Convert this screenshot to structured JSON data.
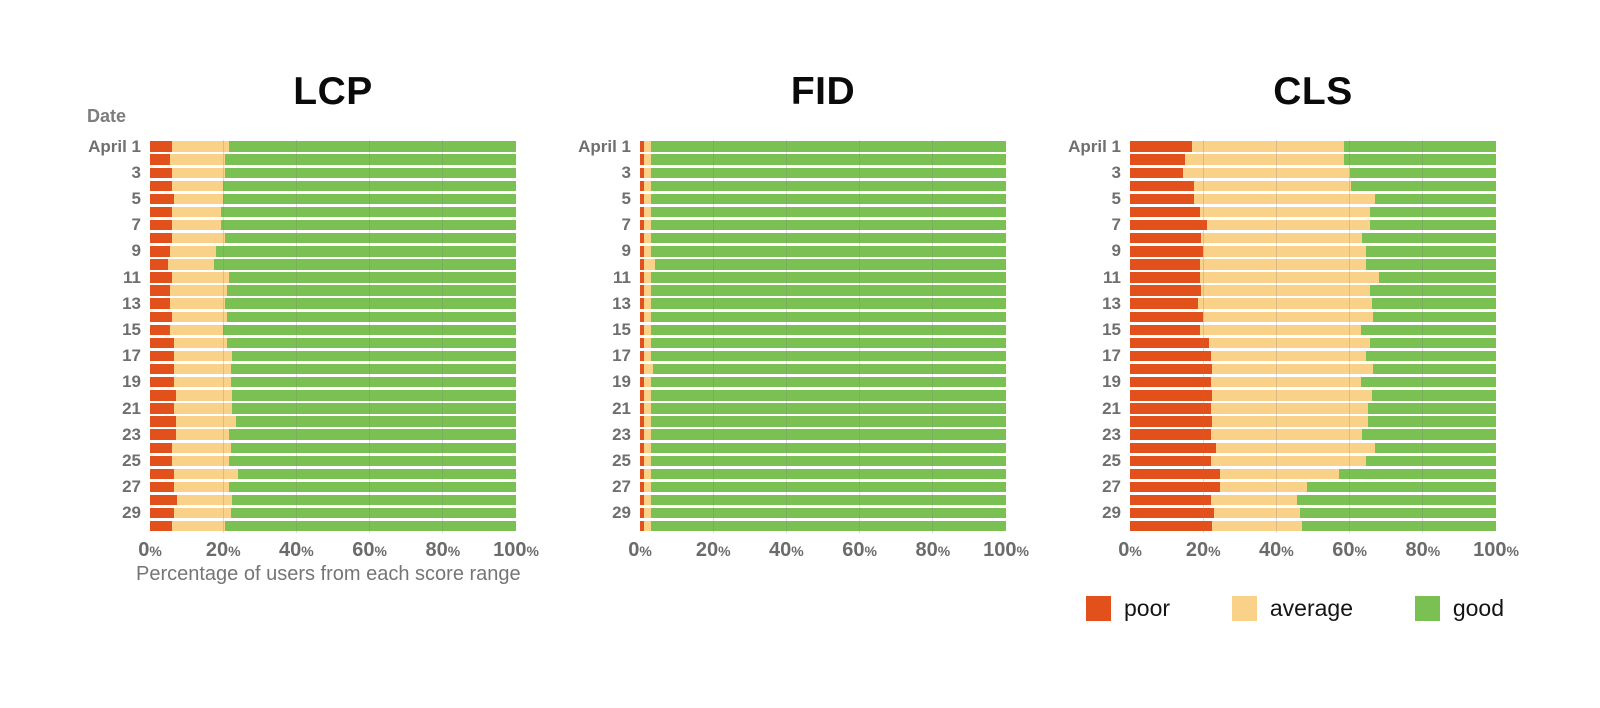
{
  "colors": {
    "poor": "#E2511B",
    "average": "#FAD189",
    "good": "#7AC052",
    "axis_text": "#6b6b6b",
    "muted_text": "#757575",
    "gridline": "rgba(130,130,130,0.28)"
  },
  "y_axis": {
    "title": "Date",
    "ticks": [
      {
        "row": 0,
        "label": "April 1"
      },
      {
        "row": 2,
        "label": "3"
      },
      {
        "row": 4,
        "label": "5"
      },
      {
        "row": 6,
        "label": "7"
      },
      {
        "row": 8,
        "label": "9"
      },
      {
        "row": 10,
        "label": "11"
      },
      {
        "row": 12,
        "label": "13"
      },
      {
        "row": 14,
        "label": "15"
      },
      {
        "row": 16,
        "label": "17"
      },
      {
        "row": 18,
        "label": "19"
      },
      {
        "row": 20,
        "label": "21"
      },
      {
        "row": 22,
        "label": "23"
      },
      {
        "row": 24,
        "label": "25"
      },
      {
        "row": 26,
        "label": "27"
      },
      {
        "row": 28,
        "label": "29"
      }
    ]
  },
  "x_axis": {
    "title": "Percentage of users from each score range",
    "suffix": "%",
    "ticks": [
      {
        "pos": 0,
        "label": "0"
      },
      {
        "pos": 20,
        "label": "20"
      },
      {
        "pos": 40,
        "label": "40"
      },
      {
        "pos": 60,
        "label": "60"
      },
      {
        "pos": 80,
        "label": "80"
      },
      {
        "pos": 100,
        "label": "100"
      }
    ],
    "gridlines": [
      20,
      40,
      60,
      80
    ]
  },
  "legend": {
    "items": [
      {
        "key": "poor",
        "label": "poor"
      },
      {
        "key": "average",
        "label": "average"
      },
      {
        "key": "good",
        "label": "good"
      }
    ]
  },
  "chart_data": [
    {
      "type": "bar",
      "stacked": true,
      "orientation": "horizontal",
      "title": "LCP",
      "xlim": [
        0,
        100
      ],
      "categories": [
        "April 1",
        "April 2",
        "April 3",
        "April 4",
        "April 5",
        "April 6",
        "April 7",
        "April 8",
        "April 9",
        "April 10",
        "April 11",
        "April 12",
        "April 13",
        "April 14",
        "April 15",
        "April 16",
        "April 17",
        "April 18",
        "April 19",
        "April 20",
        "April 21",
        "April 22",
        "April 23",
        "April 24",
        "April 25",
        "April 26",
        "April 27",
        "April 28",
        "April 29",
        "April 30"
      ],
      "series": [
        {
          "name": "poor",
          "values": [
            6,
            5.5,
            6,
            6,
            6.5,
            6,
            6,
            6,
            5.5,
            5,
            6,
            5.5,
            5.5,
            6,
            5.5,
            6.5,
            6.5,
            6.5,
            6.5,
            7,
            6.5,
            7,
            7,
            6,
            6,
            6.5,
            6.5,
            7.5,
            6.5,
            6
          ]
        },
        {
          "name": "average",
          "values": [
            15.5,
            15,
            14.5,
            14,
            13.5,
            13.5,
            13.5,
            14.5,
            12.5,
            12.5,
            15.5,
            15.5,
            15,
            15,
            14.5,
            14.5,
            16,
            15.5,
            15.5,
            15.5,
            16,
            16.5,
            14.5,
            16,
            15.5,
            17.5,
            15,
            15,
            15.5,
            14.5
          ]
        },
        {
          "name": "good",
          "values": [
            78.5,
            79.5,
            79.5,
            80,
            80,
            80.5,
            80.5,
            79.5,
            82,
            82.5,
            78.5,
            79,
            79.5,
            79,
            80,
            79,
            77.5,
            78,
            78,
            77.5,
            77.5,
            76.5,
            78.5,
            78,
            78.5,
            76,
            78.5,
            77.5,
            78,
            79.5
          ]
        }
      ]
    },
    {
      "type": "bar",
      "stacked": true,
      "orientation": "horizontal",
      "title": "FID",
      "xlim": [
        0,
        100
      ],
      "categories": [
        "April 1",
        "April 2",
        "April 3",
        "April 4",
        "April 5",
        "April 6",
        "April 7",
        "April 8",
        "April 9",
        "April 10",
        "April 11",
        "April 12",
        "April 13",
        "April 14",
        "April 15",
        "April 16",
        "April 17",
        "April 18",
        "April 19",
        "April 20",
        "April 21",
        "April 22",
        "April 23",
        "April 24",
        "April 25",
        "April 26",
        "April 27",
        "April 28",
        "April 29",
        "April 30"
      ],
      "series": [
        {
          "name": "poor",
          "values": [
            1,
            1,
            1,
            1,
            1,
            1,
            1,
            1,
            1,
            1,
            1,
            1,
            1,
            1,
            1,
            1,
            1,
            1,
            1,
            1,
            1,
            1,
            1,
            1,
            1,
            1,
            1,
            1,
            1,
            1
          ]
        },
        {
          "name": "average",
          "values": [
            2,
            2,
            2,
            2,
            2,
            2,
            2,
            2,
            2,
            3,
            2,
            2,
            2,
            2,
            2,
            2,
            2,
            2.5,
            2,
            2,
            2,
            2,
            2,
            2,
            2,
            2,
            2,
            2,
            2,
            2
          ]
        },
        {
          "name": "good",
          "values": [
            97,
            97,
            97,
            97,
            97,
            97,
            97,
            97,
            97,
            96,
            97,
            97,
            97,
            97,
            97,
            97,
            97,
            96.5,
            97,
            97,
            97,
            97,
            97,
            97,
            97,
            97,
            97,
            97,
            97,
            97
          ]
        }
      ]
    },
    {
      "type": "bar",
      "stacked": true,
      "orientation": "horizontal",
      "title": "CLS",
      "xlim": [
        0,
        100
      ],
      "categories": [
        "April 1",
        "April 2",
        "April 3",
        "April 4",
        "April 5",
        "April 6",
        "April 7",
        "April 8",
        "April 9",
        "April 10",
        "April 11",
        "April 12",
        "April 13",
        "April 14",
        "April 15",
        "April 16",
        "April 17",
        "April 18",
        "April 19",
        "April 20",
        "April 21",
        "April 22",
        "April 23",
        "April 24",
        "April 25",
        "April 26",
        "April 27",
        "April 28",
        "April 29",
        "April 30"
      ],
      "series": [
        {
          "name": "poor",
          "values": [
            17,
            15,
            14.5,
            17.5,
            17.5,
            19,
            21,
            19.5,
            20,
            19,
            19,
            19.5,
            18.5,
            20,
            19,
            21.5,
            22,
            22.5,
            22,
            22.5,
            22,
            22.5,
            22,
            23.5,
            22,
            24.5,
            24.5,
            22,
            23,
            22.5
          ]
        },
        {
          "name": "average",
          "values": [
            41.5,
            43.5,
            45.5,
            43,
            49.5,
            46.5,
            44.5,
            44,
            44.5,
            45.5,
            49,
            46,
            47.5,
            46.5,
            44,
            44,
            42.5,
            44,
            41,
            43.5,
            43,
            42.5,
            41.5,
            43.5,
            42.5,
            32.5,
            24,
            23.5,
            23.5,
            24.5
          ]
        },
        {
          "name": "good",
          "values": [
            41.5,
            41.5,
            40,
            39.5,
            33,
            34.5,
            34.5,
            36.5,
            35.5,
            35.5,
            32,
            34.5,
            34,
            33.5,
            37,
            34.5,
            35.5,
            33.5,
            37,
            34,
            35,
            35,
            36.5,
            33,
            35.5,
            43,
            51.5,
            54.5,
            53.5,
            53
          ]
        }
      ]
    }
  ]
}
